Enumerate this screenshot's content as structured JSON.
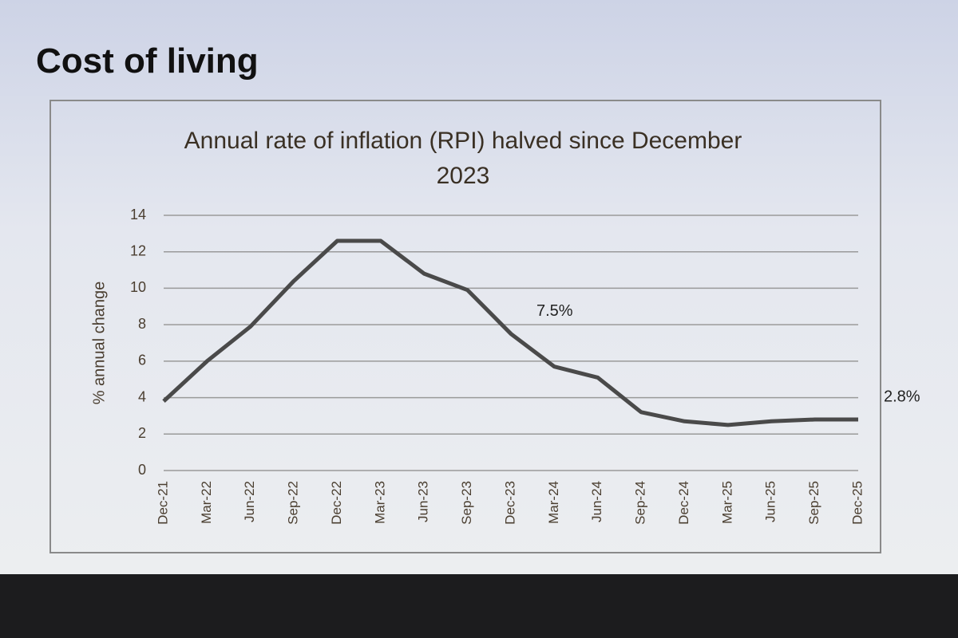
{
  "slide_title": "Cost of living",
  "chart_data": {
    "type": "line",
    "title": "Annual rate of inflation (RPI) halved since December 2023",
    "ylabel": "% annual change",
    "categories": [
      "Dec-21",
      "Mar-22",
      "Jun-22",
      "Sep-22",
      "Dec-22",
      "Mar-23",
      "Jun-23",
      "Sep-23",
      "Dec-23",
      "Mar-24",
      "Jun-24",
      "Sep-24",
      "Dec-24",
      "Mar-25",
      "Jun-25",
      "Sep-25",
      "Dec-25"
    ],
    "series": [
      {
        "name": "RPI",
        "color": "#4a4a4a",
        "values": [
          3.8,
          6.0,
          7.9,
          10.4,
          12.6,
          12.6,
          10.8,
          9.9,
          7.5,
          5.7,
          5.1,
          3.2,
          2.7,
          2.5,
          2.7,
          2.8,
          2.8
        ],
        "value_labels": [
          null,
          null,
          null,
          null,
          null,
          null,
          null,
          null,
          "7.5%",
          null,
          null,
          null,
          null,
          null,
          null,
          null,
          "2.8%"
        ]
      }
    ],
    "ylim": [
      0,
      14
    ],
    "yticks": [
      0,
      2,
      4,
      6,
      8,
      10,
      12,
      14
    ],
    "grid": true
  }
}
